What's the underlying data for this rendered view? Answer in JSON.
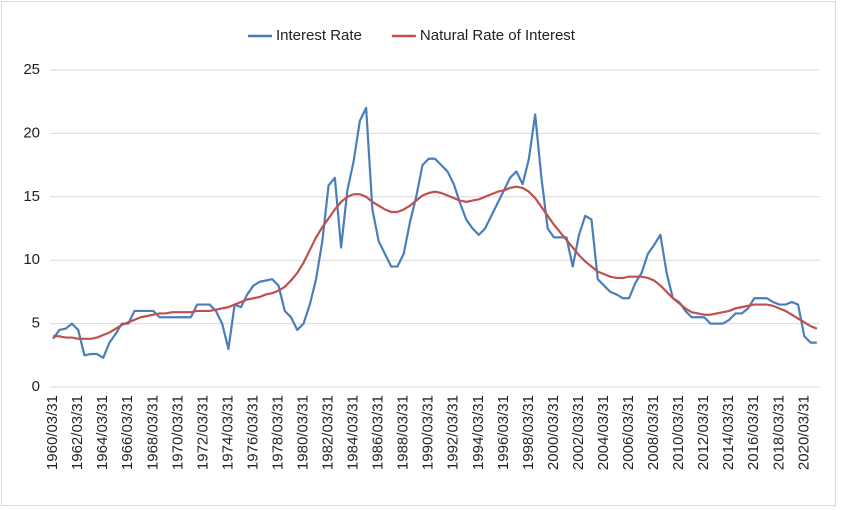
{
  "chart_data": {
    "type": "line",
    "categories": [
      "1960/03/31",
      null,
      null,
      null,
      "1962/03/31",
      null,
      null,
      null,
      "1964/03/31",
      null,
      null,
      null,
      "1966/03/31",
      null,
      null,
      null,
      "1968/03/31",
      null,
      null,
      null,
      "1970/03/31",
      null,
      null,
      null,
      "1972/03/31",
      null,
      null,
      null,
      "1974/03/31",
      null,
      null,
      null,
      "1976/03/31",
      null,
      null,
      null,
      "1978/03/31",
      null,
      null,
      null,
      "1980/03/31",
      null,
      null,
      null,
      "1982/03/31",
      null,
      null,
      null,
      "1984/03/31",
      null,
      null,
      null,
      "1986/03/31",
      null,
      null,
      null,
      "1988/03/31",
      null,
      null,
      null,
      "1990/03/31",
      null,
      null,
      null,
      "1992/03/31",
      null,
      null,
      null,
      "1994/03/31",
      null,
      null,
      null,
      "1996/03/31",
      null,
      null,
      null,
      "1998/03/31",
      null,
      null,
      null,
      "2000/03/31",
      null,
      null,
      null,
      "2002/03/31",
      null,
      null,
      null,
      "2004/03/31",
      null,
      null,
      null,
      "2006/03/31",
      null,
      null,
      null,
      "2008/03/31",
      null,
      null,
      null,
      "2010/03/31",
      null,
      null,
      null,
      "2012/03/31",
      null,
      null,
      null,
      "2014/03/31",
      null,
      null,
      null,
      "2016/03/31",
      null,
      null,
      null,
      "2018/03/31",
      null,
      null,
      null,
      "2020/03/31",
      null,
      null
    ],
    "series": [
      {
        "name": "Interest Rate",
        "color": "#4a7ebb",
        "values": [
          3.8,
          4.5,
          4.6,
          5.0,
          4.5,
          2.5,
          2.6,
          2.6,
          2.3,
          3.5,
          4.2,
          5.0,
          5.0,
          6.0,
          6.0,
          6.0,
          6.0,
          5.5,
          5.5,
          5.5,
          5.5,
          5.5,
          5.5,
          6.5,
          6.5,
          6.5,
          6.0,
          5.0,
          3.0,
          6.5,
          6.3,
          7.3,
          8.0,
          8.3,
          8.4,
          8.5,
          8.0,
          6.0,
          5.5,
          4.5,
          5.0,
          6.5,
          8.5,
          11.5,
          15.9,
          16.5,
          11,
          15.5,
          17.8,
          21,
          22,
          14,
          11.5,
          10.5,
          9.5,
          9.5,
          10.5,
          13,
          15,
          17.5,
          18,
          18,
          17.5,
          17,
          16,
          14.5,
          13.2,
          12.5,
          12,
          12.5,
          13.5,
          14.5,
          15.5,
          16.5,
          17,
          16,
          18,
          21.5,
          16.5,
          12.5,
          11.8,
          11.8,
          11.8,
          9.5,
          12,
          13.5,
          13.2,
          8.5,
          8,
          7.5,
          7.3,
          7,
          7,
          8.2,
          9,
          10.5,
          11.2,
          12,
          9,
          7,
          6.7,
          6,
          5.5,
          5.5,
          5.5,
          5,
          5,
          5,
          5.3,
          5.8,
          5.8,
          6.2,
          7,
          7,
          7,
          6.7,
          6.5,
          6.5,
          6.7,
          6.5,
          4,
          3.5,
          3.5
        ]
      },
      {
        "name": "Natural Rate of Interest",
        "color": "#c0504d",
        "values": [
          4.0,
          4.0,
          3.9,
          3.9,
          3.8,
          3.8,
          3.8,
          3.9,
          4.1,
          4.3,
          4.6,
          4.9,
          5.1,
          5.3,
          5.5,
          5.6,
          5.7,
          5.8,
          5.8,
          5.9,
          5.9,
          5.9,
          5.9,
          6.0,
          6.0,
          6.0,
          6.1,
          6.2,
          6.3,
          6.5,
          6.7,
          6.9,
          7.0,
          7.1,
          7.3,
          7.4,
          7.6,
          7.9,
          8.4,
          9.0,
          9.8,
          10.8,
          11.8,
          12.6,
          13.3,
          14.0,
          14.6,
          15.0,
          15.2,
          15.2,
          15.0,
          14.6,
          14.3,
          14.0,
          13.8,
          13.8,
          14.0,
          14.3,
          14.7,
          15.1,
          15.3,
          15.4,
          15.3,
          15.1,
          14.9,
          14.7,
          14.6,
          14.7,
          14.8,
          15.0,
          15.2,
          15.4,
          15.5,
          15.7,
          15.8,
          15.7,
          15.4,
          14.9,
          14.2,
          13.5,
          12.8,
          12.2,
          11.6,
          11.0,
          10.4,
          9.9,
          9.5,
          9.1,
          8.9,
          8.7,
          8.6,
          8.6,
          8.7,
          8.7,
          8.7,
          8.6,
          8.4,
          8.0,
          7.5,
          7.0,
          6.6,
          6.2,
          5.9,
          5.8,
          5.7,
          5.7,
          5.8,
          5.9,
          6.0,
          6.2,
          6.3,
          6.4,
          6.5,
          6.5,
          6.5,
          6.4,
          6.2,
          6.0,
          5.7,
          5.4,
          5.1,
          4.8,
          4.6
        ]
      }
    ],
    "ylim": [
      0,
      25
    ],
    "yticks": [
      0,
      5,
      10,
      15,
      20,
      25
    ],
    "grid": true,
    "legend": "top"
  }
}
